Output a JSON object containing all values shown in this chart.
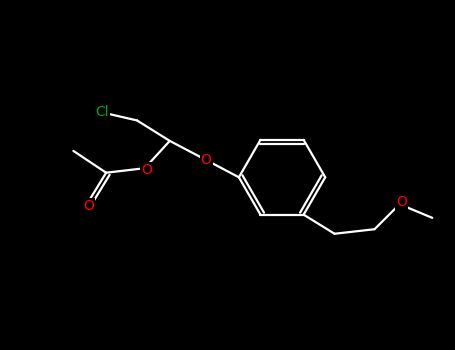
{
  "background_color": "#000000",
  "bond_color": "#ffffff",
  "atom_colors": {
    "O": "#ff0000",
    "Cl": "#00aa00",
    "C": "#808080"
  },
  "figsize": [
    4.55,
    3.5
  ],
  "dpi": 100,
  "xlim": [
    0,
    10
  ],
  "ylim": [
    0,
    7.7
  ]
}
